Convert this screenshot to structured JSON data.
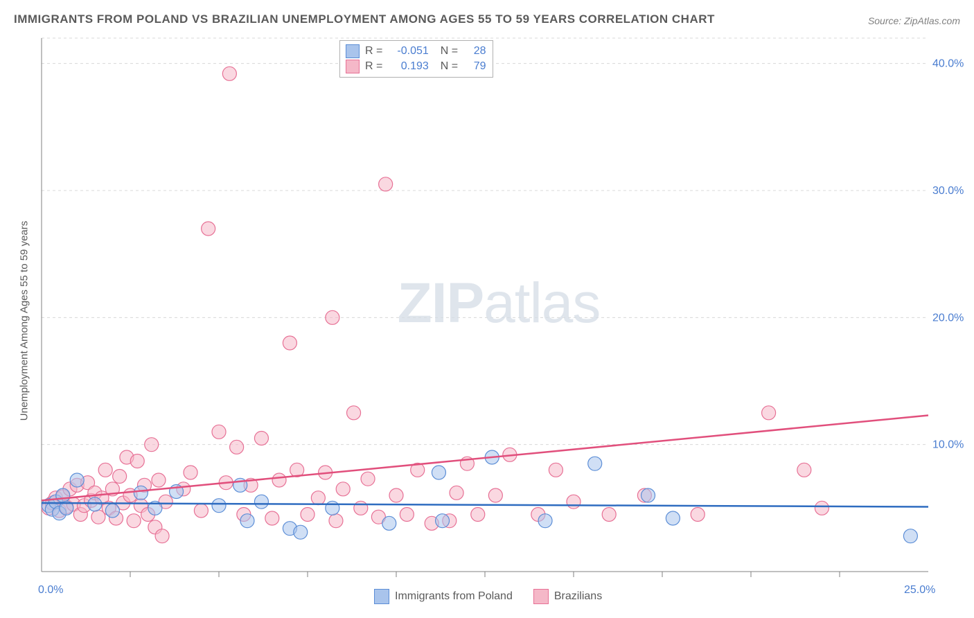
{
  "title": "IMMIGRANTS FROM POLAND VS BRAZILIAN UNEMPLOYMENT AMONG AGES 55 TO 59 YEARS CORRELATION CHART",
  "source": "Source: ZipAtlas.com",
  "ylabel": "Unemployment Among Ages 55 to 59 years",
  "watermark_bold": "ZIP",
  "watermark_light": "atlas",
  "chart": {
    "type": "scatter",
    "xlim": [
      0,
      25
    ],
    "ylim": [
      0,
      42
    ],
    "x_origin_label": "0.0%",
    "x_end_label": "25.0%",
    "ytick_labels": [
      "10.0%",
      "20.0%",
      "30.0%",
      "40.0%"
    ],
    "ytick_values": [
      10,
      20,
      30,
      40
    ],
    "xtick_values": [
      2.5,
      5,
      7.5,
      10,
      12.5,
      15,
      17.5,
      20,
      22.5
    ],
    "grid_color": "#d8d8d8",
    "axis_color": "#808080",
    "background_color": "#ffffff",
    "axis_label_color": "#4a7dd0",
    "marker_radius": 10,
    "marker_opacity": 0.55,
    "series": [
      {
        "name": "Immigrants from Poland",
        "fill": "#a9c4ec",
        "stroke": "#5b8dd6",
        "line_color": "#2e6cc0",
        "r": "-0.051",
        "n": "28",
        "trend": {
          "x1": 0,
          "y1": 5.4,
          "x2": 25,
          "y2": 5.1
        },
        "points": [
          [
            0.2,
            5.2
          ],
          [
            0.3,
            4.9
          ],
          [
            0.4,
            5.5
          ],
          [
            0.5,
            4.6
          ],
          [
            0.6,
            6.0
          ],
          [
            0.7,
            5.0
          ],
          [
            1.0,
            7.2
          ],
          [
            1.5,
            5.3
          ],
          [
            2.0,
            4.8
          ],
          [
            2.8,
            6.2
          ],
          [
            3.2,
            5.0
          ],
          [
            3.8,
            6.3
          ],
          [
            5.0,
            5.2
          ],
          [
            5.6,
            6.8
          ],
          [
            5.8,
            4.0
          ],
          [
            6.2,
            5.5
          ],
          [
            7.0,
            3.4
          ],
          [
            7.3,
            3.1
          ],
          [
            8.2,
            5.0
          ],
          [
            9.8,
            3.8
          ],
          [
            11.3,
            4.0
          ],
          [
            11.2,
            7.8
          ],
          [
            12.7,
            9.0
          ],
          [
            14.2,
            4.0
          ],
          [
            15.6,
            8.5
          ],
          [
            17.1,
            6.0
          ],
          [
            17.8,
            4.2
          ],
          [
            24.5,
            2.8
          ]
        ]
      },
      {
        "name": "Brazilians",
        "fill": "#f5b8c8",
        "stroke": "#e77095",
        "line_color": "#e14f7c",
        "r": "0.193",
        "n": "79",
        "trend": {
          "x1": 0,
          "y1": 5.6,
          "x2": 25,
          "y2": 12.3
        },
        "points": [
          [
            0.2,
            5.0
          ],
          [
            0.3,
            5.4
          ],
          [
            0.4,
            5.8
          ],
          [
            0.5,
            4.8
          ],
          [
            0.6,
            5.9
          ],
          [
            0.7,
            5.1
          ],
          [
            0.8,
            6.5
          ],
          [
            0.9,
            5.3
          ],
          [
            1.0,
            6.8
          ],
          [
            1.1,
            4.5
          ],
          [
            1.2,
            5.2
          ],
          [
            1.3,
            7.0
          ],
          [
            1.4,
            5.6
          ],
          [
            1.5,
            6.2
          ],
          [
            1.6,
            4.3
          ],
          [
            1.7,
            5.8
          ],
          [
            1.8,
            8.0
          ],
          [
            1.9,
            5.0
          ],
          [
            2.0,
            6.5
          ],
          [
            2.1,
            4.2
          ],
          [
            2.2,
            7.5
          ],
          [
            2.3,
            5.4
          ],
          [
            2.4,
            9.0
          ],
          [
            2.5,
            6.0
          ],
          [
            2.6,
            4.0
          ],
          [
            2.7,
            8.7
          ],
          [
            2.8,
            5.2
          ],
          [
            2.9,
            6.8
          ],
          [
            3.0,
            4.5
          ],
          [
            3.1,
            10.0
          ],
          [
            3.2,
            3.5
          ],
          [
            3.3,
            7.2
          ],
          [
            3.4,
            2.8
          ],
          [
            3.5,
            5.5
          ],
          [
            4.0,
            6.5
          ],
          [
            4.2,
            7.8
          ],
          [
            4.5,
            4.8
          ],
          [
            4.7,
            27.0
          ],
          [
            5.0,
            11.0
          ],
          [
            5.2,
            7.0
          ],
          [
            5.3,
            39.2
          ],
          [
            5.5,
            9.8
          ],
          [
            5.7,
            4.5
          ],
          [
            5.9,
            6.8
          ],
          [
            6.2,
            10.5
          ],
          [
            6.5,
            4.2
          ],
          [
            6.7,
            7.2
          ],
          [
            7.0,
            18.0
          ],
          [
            7.2,
            8.0
          ],
          [
            7.5,
            4.5
          ],
          [
            7.8,
            5.8
          ],
          [
            8.0,
            7.8
          ],
          [
            8.2,
            20.0
          ],
          [
            8.3,
            4.0
          ],
          [
            8.5,
            6.5
          ],
          [
            8.8,
            12.5
          ],
          [
            9.0,
            5.0
          ],
          [
            9.2,
            7.3
          ],
          [
            9.5,
            4.3
          ],
          [
            9.7,
            30.5
          ],
          [
            10.0,
            6.0
          ],
          [
            10.3,
            4.5
          ],
          [
            10.6,
            8.0
          ],
          [
            11.0,
            3.8
          ],
          [
            11.5,
            4.0
          ],
          [
            11.7,
            6.2
          ],
          [
            12.0,
            8.5
          ],
          [
            12.3,
            4.5
          ],
          [
            12.8,
            6.0
          ],
          [
            13.2,
            9.2
          ],
          [
            14.0,
            4.5
          ],
          [
            14.5,
            8.0
          ],
          [
            15.0,
            5.5
          ],
          [
            16.0,
            4.5
          ],
          [
            17.0,
            6.0
          ],
          [
            18.5,
            4.5
          ],
          [
            20.5,
            12.5
          ],
          [
            21.5,
            8.0
          ],
          [
            22.0,
            5.0
          ]
        ]
      }
    ]
  }
}
